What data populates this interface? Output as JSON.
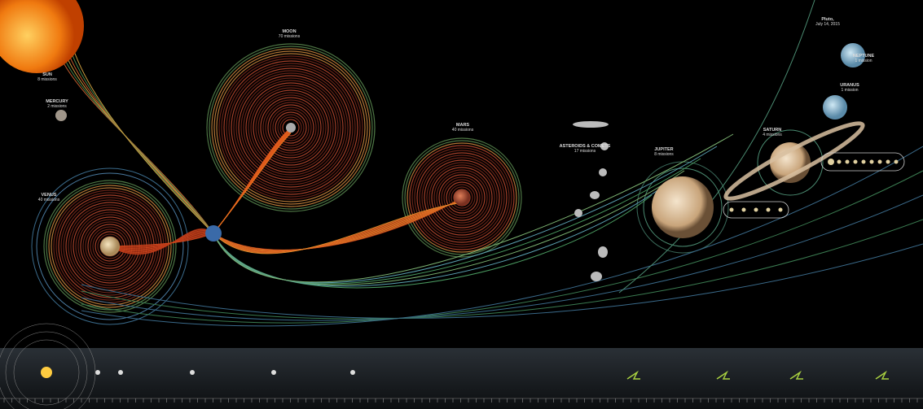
{
  "labels": [
    {
      "name": "SUN",
      "sub": "8 missions"
    },
    {
      "name": "MERCURY",
      "sub": "2 missions"
    },
    {
      "name": "MOON",
      "sub": "70 missions"
    },
    {
      "name": "MARS",
      "sub": "40 missions"
    },
    {
      "name": "VENUS",
      "sub": "40 missions"
    },
    {
      "name": "ASTEROIDS & COMETS",
      "sub": "17 missions"
    },
    {
      "name": "JUPITER",
      "sub": "8 missions"
    },
    {
      "name": "SATURN",
      "sub": "4 missions"
    },
    {
      "name": "URANUS",
      "sub": "1 mission"
    },
    {
      "name": "NEPTUNE",
      "sub": "1 mission"
    },
    {
      "name": "Pluto,",
      "sub": "July 14, 2015"
    }
  ]
}
